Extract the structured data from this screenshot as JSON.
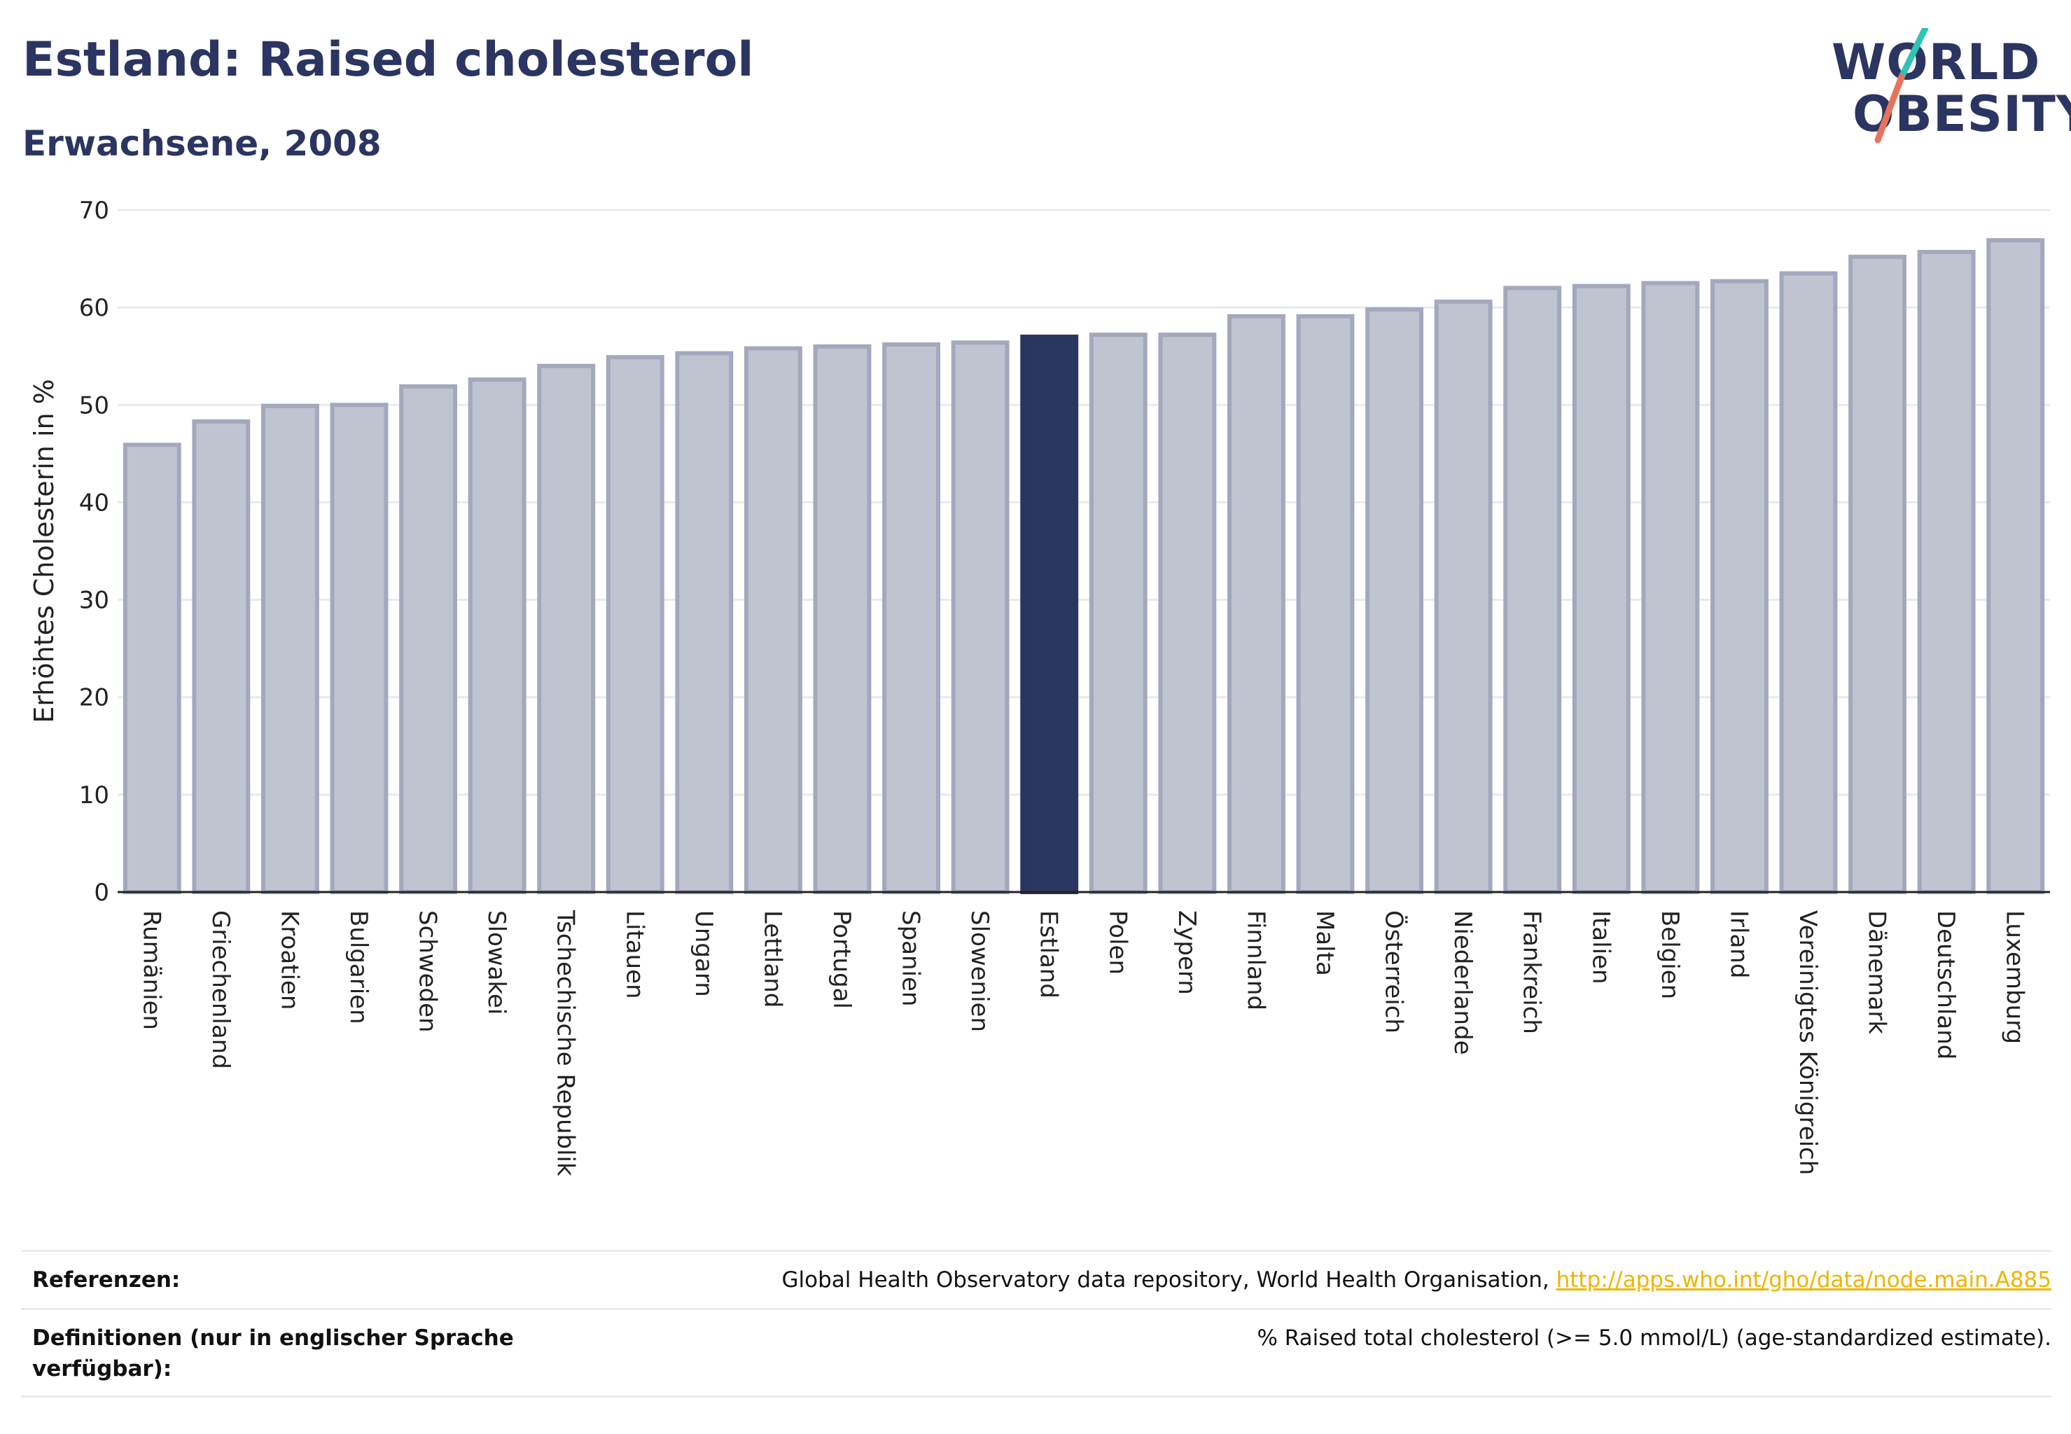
{
  "header": {
    "title": "Estland: Raised cholesterol",
    "subtitle": "Erwachsene, 2008"
  },
  "logo": {
    "line1": "WORLD",
    "line2": "OBESITY",
    "colors": {
      "text": "#2b3561",
      "slash_top": "#2ec4b6",
      "slash_bottom": "#e8735a"
    }
  },
  "chart_data": {
    "type": "bar",
    "ylabel": "Erhöhtes Cholesterin in %",
    "ylim": [
      0,
      70
    ],
    "yticks": [
      0,
      10,
      20,
      30,
      40,
      50,
      60,
      70
    ],
    "grid": true,
    "highlight": "Estland",
    "colors": {
      "bar": "#c0c3d0",
      "bar_border": "#a3a8bd",
      "highlight": "#2b3561",
      "grid": "#e8eaf0",
      "axis": "#222222"
    },
    "categories": [
      "Rumänien",
      "Griechenland",
      "Kroatien",
      "Bulgarien",
      "Schweden",
      "Slowakei",
      "Tschechische Republik",
      "Litauen",
      "Ungarn",
      "Lettland",
      "Portugal",
      "Spanien",
      "Slowenien",
      "Estland",
      "Polen",
      "Zypern",
      "Finnland",
      "Malta",
      "Österreich",
      "Niederlande",
      "Frankreich",
      "Italien",
      "Belgien",
      "Irland",
      "Vereinigtes Königreich",
      "Dänemark",
      "Deutschland",
      "Luxemburg"
    ],
    "values": [
      45.9,
      48.3,
      49.9,
      50.0,
      51.9,
      52.6,
      54.0,
      54.9,
      55.3,
      55.8,
      56.0,
      56.2,
      56.4,
      57.0,
      57.2,
      57.2,
      59.1,
      59.1,
      59.8,
      60.6,
      62.0,
      62.2,
      62.5,
      62.7,
      63.5,
      65.2,
      65.7,
      66.9
    ]
  },
  "references": {
    "ref_label": "Referenzen:",
    "ref_text": "Global Health Observatory data repository, World Health Organisation, ",
    "ref_link": "http://apps.who.int/gho/data/node.main.A885",
    "def_label": "Definitionen (nur in englischer Sprache verfügbar):",
    "def_text": "% Raised total cholesterol (>= 5.0 mmol/L) (age-standardized estimate)."
  }
}
